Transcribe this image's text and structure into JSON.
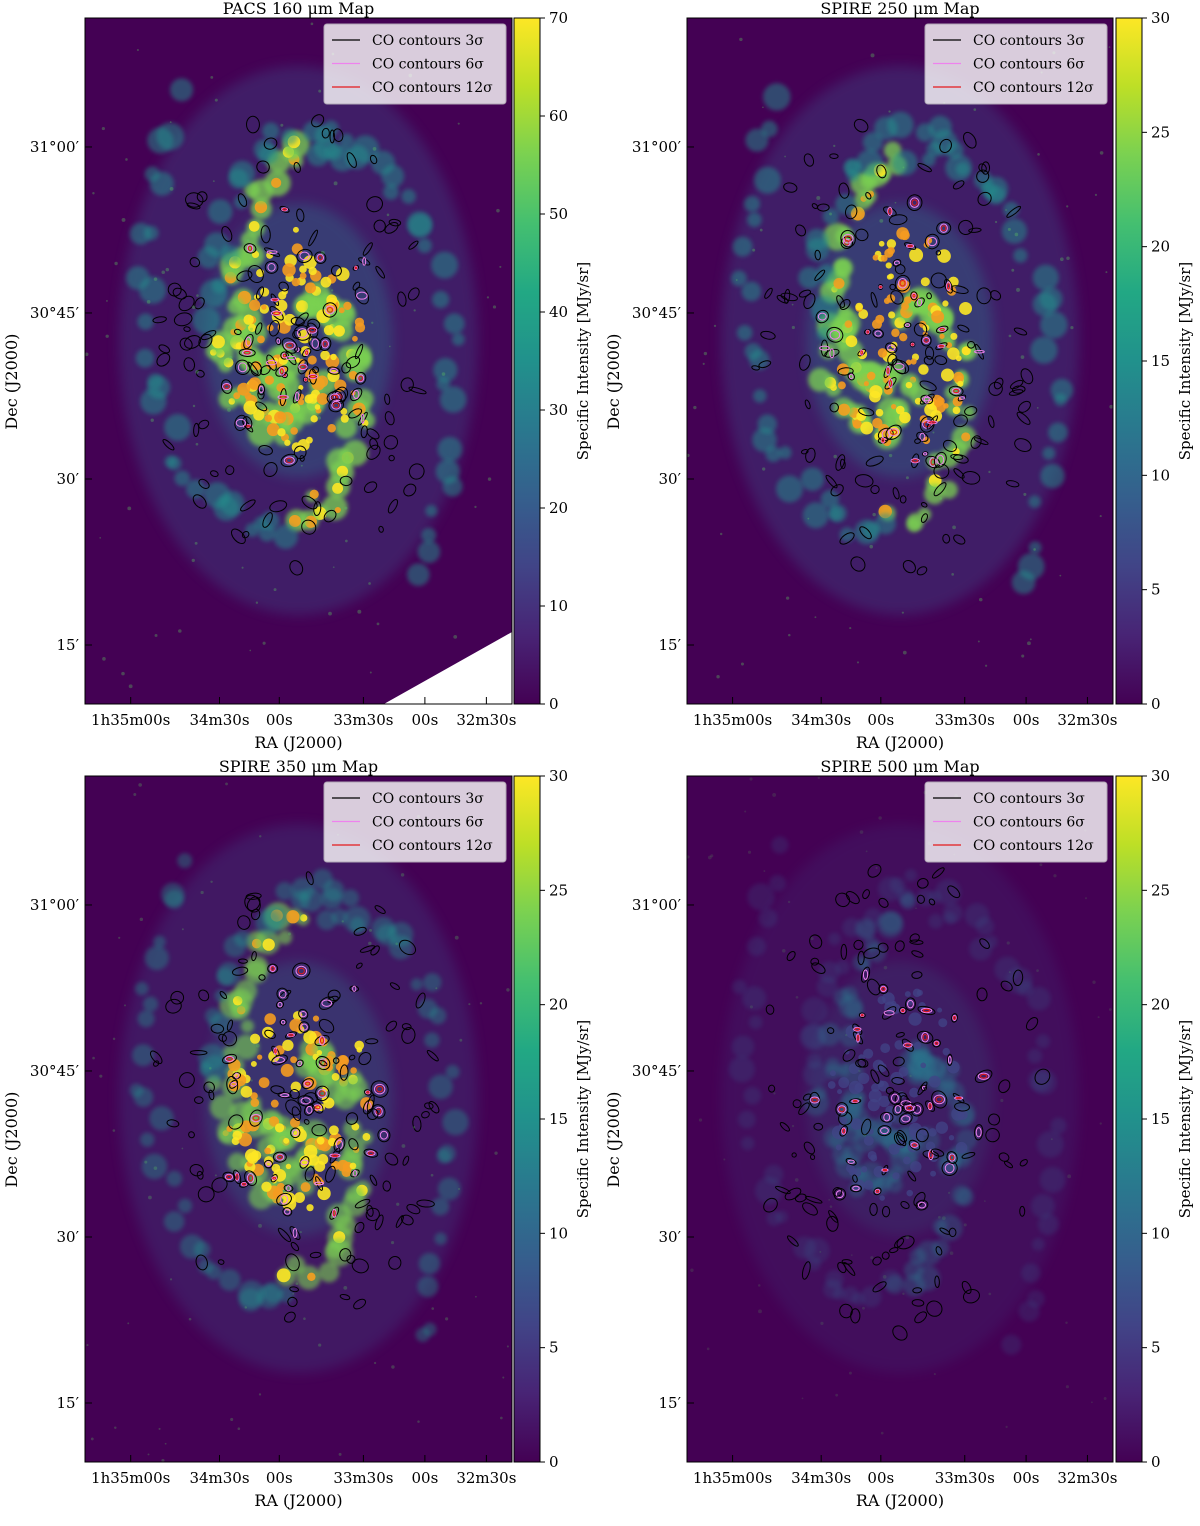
{
  "chart_data": [
    {
      "type": "heatmap",
      "title": "PACS 160 μm Map",
      "xlabel": "RA (J2000)",
      "ylabel": "Dec (J2000)",
      "x_ticks": [
        "1h35m00s",
        "34m30s",
        "00s",
        "33m30s",
        "00s",
        "32m30s"
      ],
      "y_ticks": [
        "31°00′",
        "30°45′",
        "30′",
        "15′"
      ],
      "colorbar": {
        "label": "Specific Intensity [MJy/sr]",
        "range": [
          0,
          70
        ],
        "ticks": [
          0,
          10,
          20,
          30,
          40,
          50,
          60,
          70
        ],
        "colormap": "viridis"
      },
      "legend": {
        "placement": "top-right",
        "entries": [
          {
            "label": "CO contours 3σ",
            "color": "#000000"
          },
          {
            "label": "CO contours 6σ",
            "color": "#ee82ee"
          },
          {
            "label": "CO contours 12σ",
            "color": "#e41a1c"
          }
        ]
      },
      "brightness_scale": 1.0,
      "masked_corner": true
    },
    {
      "type": "heatmap",
      "title": "SPIRE 250 μm Map",
      "xlabel": "RA (J2000)",
      "ylabel": "Dec (J2000)",
      "x_ticks": [
        "1h35m00s",
        "34m30s",
        "00s",
        "33m30s",
        "00s",
        "32m30s"
      ],
      "y_ticks": [
        "31°00′",
        "30°45′",
        "30′",
        "15′"
      ],
      "colorbar": {
        "label": "Specific Intensity [MJy/sr]",
        "range": [
          0,
          30
        ],
        "ticks": [
          0,
          5,
          10,
          15,
          20,
          25,
          30
        ],
        "colormap": "viridis"
      },
      "legend": {
        "placement": "top-right",
        "entries": [
          {
            "label": "CO contours 3σ",
            "color": "#000000"
          },
          {
            "label": "CO contours 6σ",
            "color": "#ee82ee"
          },
          {
            "label": "CO contours 12σ",
            "color": "#e41a1c"
          }
        ]
      },
      "brightness_scale": 1.0,
      "masked_corner": false
    },
    {
      "type": "heatmap",
      "title": "SPIRE 350 μm Map",
      "xlabel": "RA (J2000)",
      "ylabel": "Dec (J2000)",
      "x_ticks": [
        "1h35m00s",
        "34m30s",
        "00s",
        "33m30s",
        "00s",
        "32m30s"
      ],
      "y_ticks": [
        "31°00′",
        "30°45′",
        "30′",
        "15′"
      ],
      "colorbar": {
        "label": "Specific Intensity [MJy/sr]",
        "range": [
          0,
          30
        ],
        "ticks": [
          0,
          5,
          10,
          15,
          20,
          25,
          30
        ],
        "colormap": "viridis"
      },
      "legend": {
        "placement": "top-right",
        "entries": [
          {
            "label": "CO contours 3σ",
            "color": "#000000"
          },
          {
            "label": "CO contours 6σ",
            "color": "#ee82ee"
          },
          {
            "label": "CO contours 12σ",
            "color": "#e41a1c"
          }
        ]
      },
      "brightness_scale": 0.8,
      "masked_corner": false
    },
    {
      "type": "heatmap",
      "title": "SPIRE 500 μm Map",
      "xlabel": "RA (J2000)",
      "ylabel": "Dec (J2000)",
      "x_ticks": [
        "1h35m00s",
        "34m30s",
        "00s",
        "33m30s",
        "00s",
        "32m30s"
      ],
      "y_ticks": [
        "31°00′",
        "30°45′",
        "30′",
        "15′"
      ],
      "colorbar": {
        "label": "Specific Intensity [MJy/sr]",
        "range": [
          0,
          30
        ],
        "ticks": [
          0,
          5,
          10,
          15,
          20,
          25,
          30
        ],
        "colormap": "viridis"
      },
      "legend": {
        "placement": "top-right",
        "entries": [
          {
            "label": "CO contours 3σ",
            "color": "#000000"
          },
          {
            "label": "CO contours 6σ",
            "color": "#ee82ee"
          },
          {
            "label": "CO contours 12σ",
            "color": "#e41a1c"
          }
        ]
      },
      "brightness_scale": 0.45,
      "masked_corner": false
    }
  ]
}
